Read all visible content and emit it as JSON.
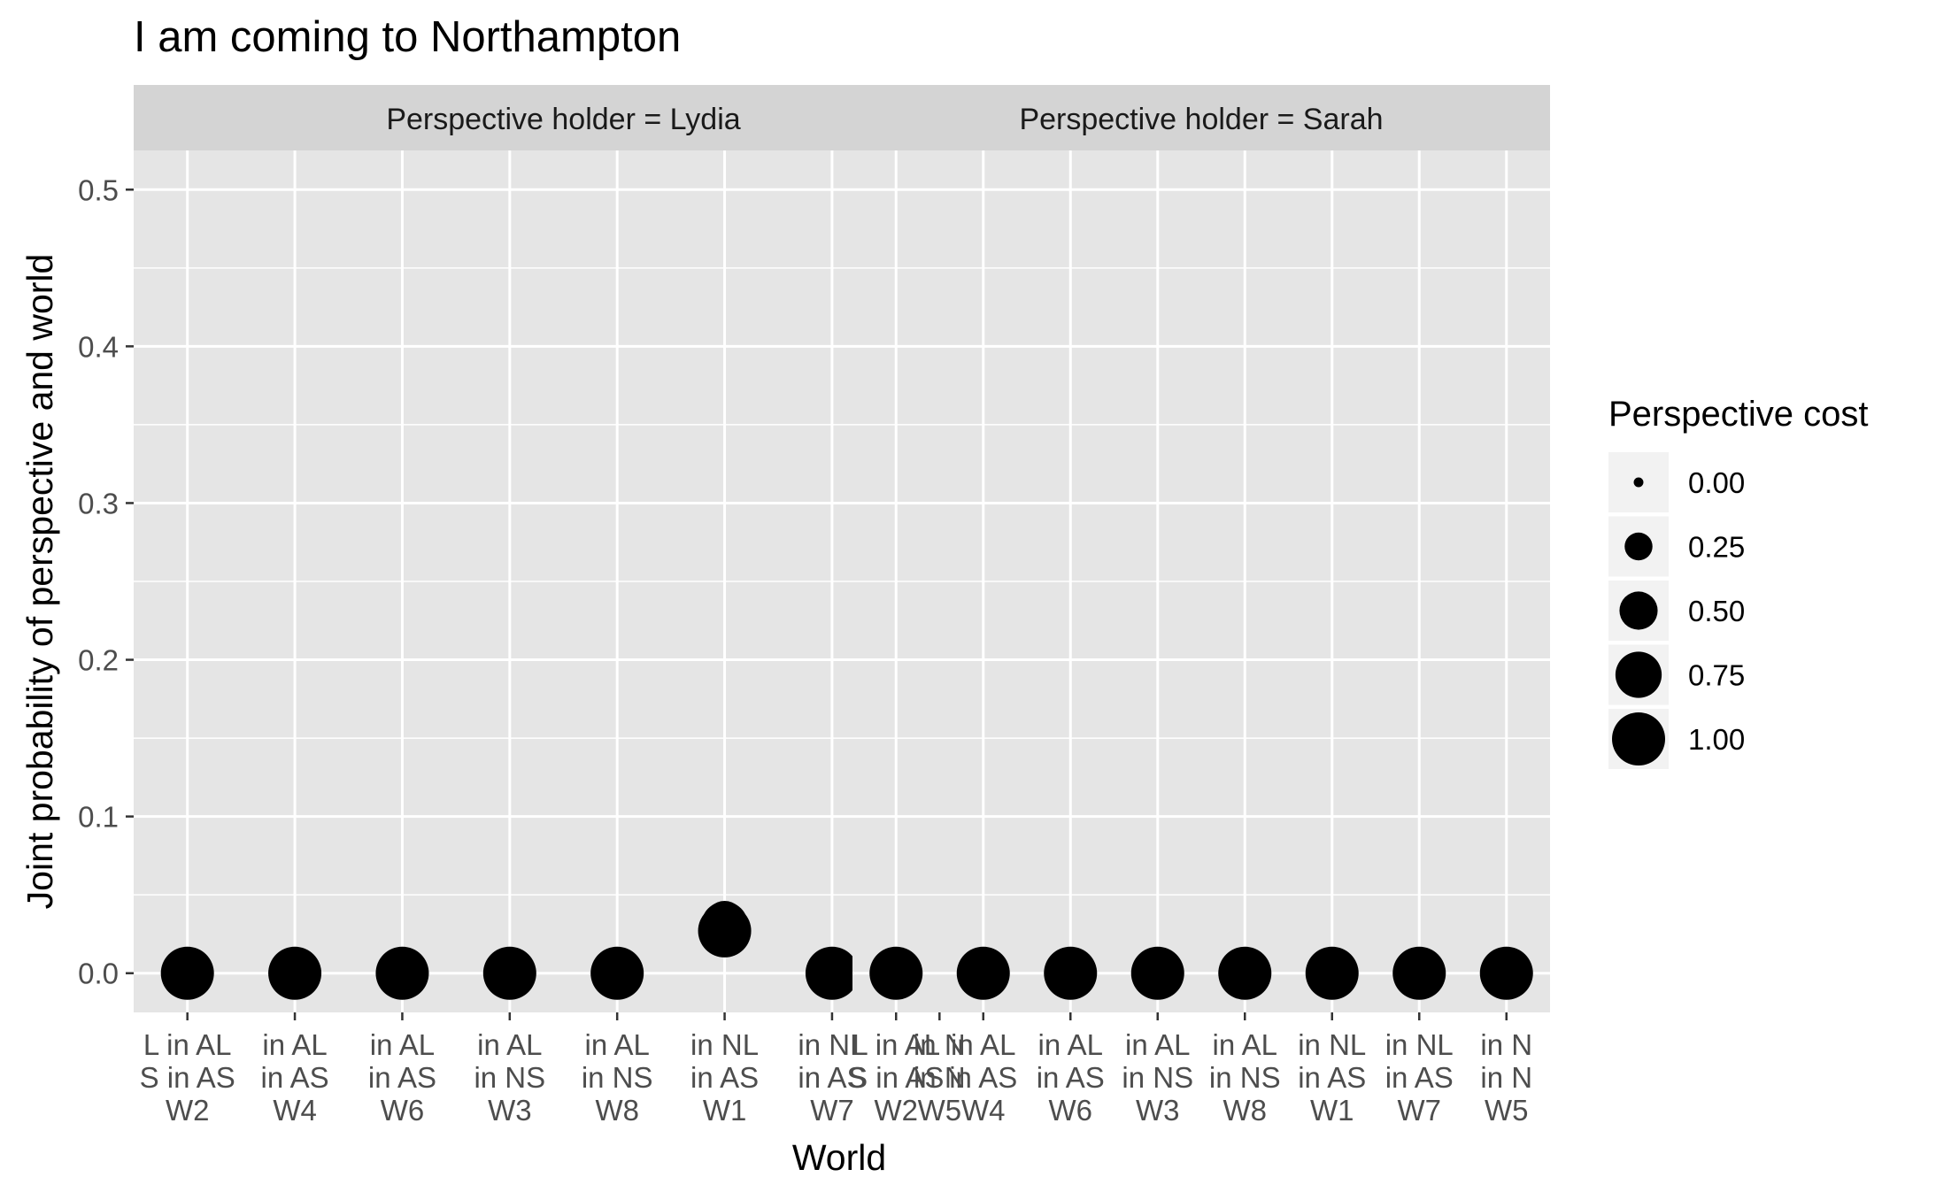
{
  "chart_data": {
    "type": "scatter",
    "title": "I am coming to Northampton",
    "xlabel": "World",
    "ylabel": "Joint probability of perspective and world",
    "ylim": [
      -0.025,
      0.525
    ],
    "yticks": [
      0.0,
      0.1,
      0.2,
      0.3,
      0.4,
      0.5
    ],
    "ytick_labels": [
      "0.0",
      "0.1",
      "0.2",
      "0.3",
      "0.4",
      "0.5"
    ],
    "grid": true,
    "categories": [
      [
        "L in AL",
        "S in AS",
        "W2"
      ],
      [
        "in AL",
        "in AS",
        "W4"
      ],
      [
        "in AL",
        "in AS",
        "W6"
      ],
      [
        "in AL",
        "in NS",
        "W3"
      ],
      [
        "in AL",
        "in NS",
        "W8"
      ],
      [
        "in NL",
        "in AS",
        "W1"
      ],
      [
        "in NL",
        "in AS",
        "W7"
      ],
      [
        "in N",
        "in N",
        "W5"
      ]
    ],
    "facets": [
      {
        "label": "Perspective holder = Lydia",
        "points": [
          {
            "world": "W2",
            "y": 0.0,
            "cost": 1.0
          },
          {
            "world": "W4",
            "y": 0.0,
            "cost": 1.0
          },
          {
            "world": "W6",
            "y": 0.0,
            "cost": 1.0
          },
          {
            "world": "W3",
            "y": 0.0,
            "cost": 1.0
          },
          {
            "world": "W8",
            "y": 0.0,
            "cost": 1.0
          },
          {
            "world": "W1",
            "y": 0.027,
            "cost": 1.0
          },
          {
            "world": "W1",
            "y": 0.031,
            "cost": 0.75
          },
          {
            "world": "W1",
            "y": 0.034,
            "cost": 0.5
          },
          {
            "world": "W7",
            "y": 0.0,
            "cost": 1.0
          },
          {
            "world": "W5",
            "y": 0.0,
            "cost": 1.0
          }
        ]
      },
      {
        "label": "Perspective holder = Sarah",
        "points": [
          {
            "world": "W2",
            "y": 0.0,
            "cost": 1.0
          },
          {
            "world": "W4",
            "y": 0.0,
            "cost": 1.0
          },
          {
            "world": "W6",
            "y": 0.0,
            "cost": 1.0
          },
          {
            "world": "W3",
            "y": 0.0,
            "cost": 1.0
          },
          {
            "world": "W8",
            "y": 0.0,
            "cost": 1.0
          },
          {
            "world": "W1",
            "y": 0.0,
            "cost": 1.0
          },
          {
            "world": "W7",
            "y": 0.0,
            "cost": 1.0
          },
          {
            "world": "W5",
            "y": 0.0,
            "cost": 1.0
          }
        ]
      }
    ],
    "legend": {
      "title": "Perspective cost",
      "position": "right",
      "entries": [
        {
          "label": "0.00",
          "value": 0.0
        },
        {
          "label": "0.25",
          "value": 0.25
        },
        {
          "label": "0.50",
          "value": 0.5
        },
        {
          "label": "0.75",
          "value": 0.75
        },
        {
          "label": "1.00",
          "value": 1.0
        }
      ]
    },
    "colors": {
      "panel_background": "#e5e5e5",
      "strip_background": "#d4d4d4",
      "grid": "#ffffff",
      "point": "#000000",
      "axis_text": "#4d4d4d",
      "text": "#000000"
    }
  }
}
